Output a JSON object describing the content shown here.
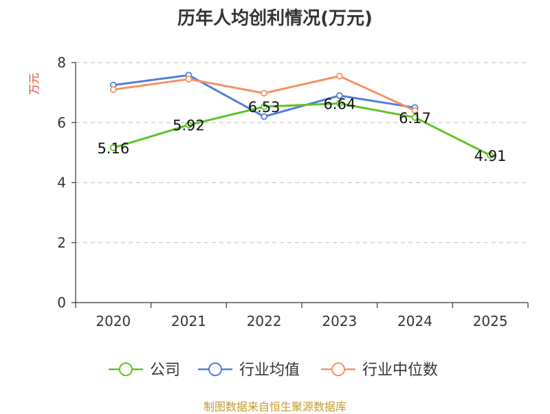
{
  "chart_data": {
    "type": "line",
    "title": "历年人均创利情况(万元)",
    "ylabel": "万元",
    "xlabel": "",
    "categories": [
      "2020",
      "2021",
      "2022",
      "2023",
      "2024",
      "2025"
    ],
    "ylim": [
      0,
      8
    ],
    "yticks": [
      0,
      2,
      4,
      6,
      8
    ],
    "grid": true,
    "legend": "bottom",
    "series": [
      {
        "name": "公司",
        "color": "#5cc424",
        "values": [
          5.16,
          5.92,
          6.53,
          6.64,
          6.17,
          4.91
        ],
        "labels": [
          "5.16",
          "5.92",
          "6.53",
          "6.64",
          "6.17",
          "4.91"
        ]
      },
      {
        "name": "行业均值",
        "color": "#4f7ddb",
        "values": [
          7.25,
          7.58,
          6.2,
          6.9,
          6.5,
          null
        ]
      },
      {
        "name": "行业中位数",
        "color": "#f59161",
        "values": [
          7.1,
          7.45,
          6.98,
          7.55,
          6.4,
          null
        ]
      }
    ],
    "source": "制图数据来自恒生聚源数据库"
  }
}
